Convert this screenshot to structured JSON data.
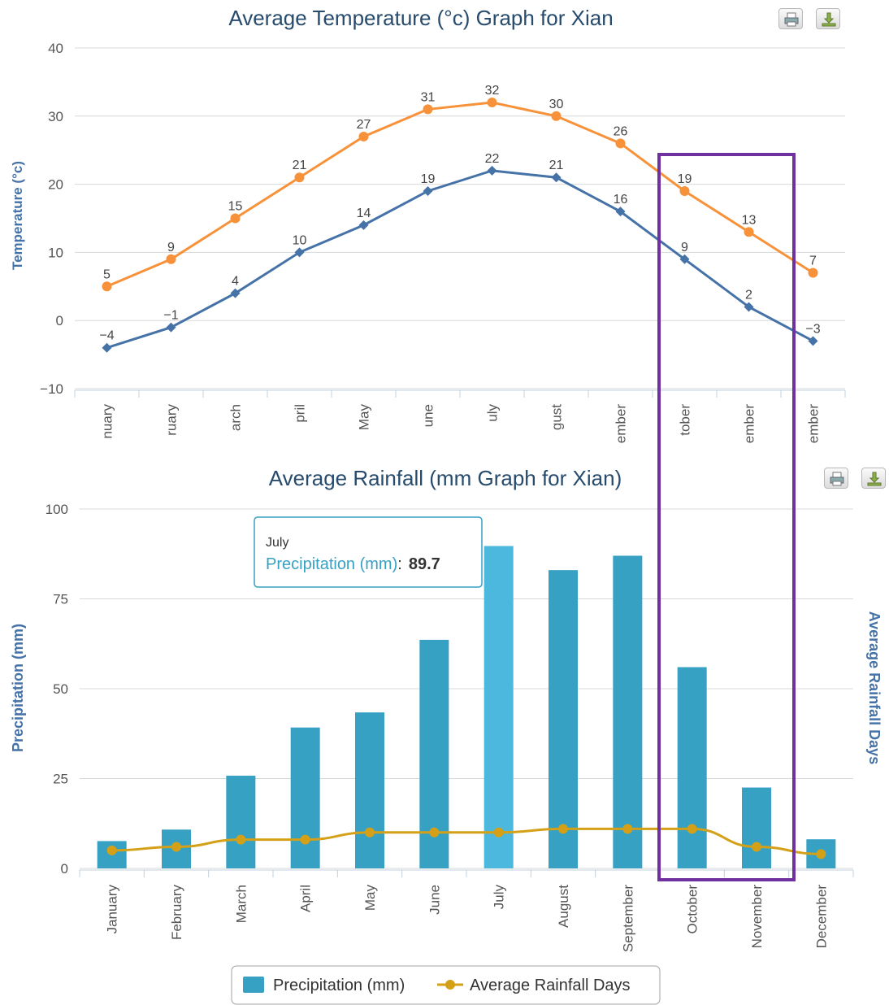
{
  "colors": {
    "temp_high": "#f7923a",
    "temp_low": "#4572a7",
    "bar": "#37a1c4",
    "bar_hover": "#4cb8de",
    "rain_days": "#d4a017",
    "title": "#274b6d",
    "axis_title": "#4572a7",
    "tooltip_label": "#37a1c4",
    "highlight_box": "#7030a0"
  },
  "icons": [
    "print-icon",
    "download-icon"
  ],
  "chart_data": [
    {
      "type": "line",
      "title": "Average Temperature (°c) Graph for Xian",
      "ylabel": "Temperature (°c)",
      "ylim": [
        -10,
        40
      ],
      "yticks": [
        "40",
        "30",
        "20",
        "10",
        "0",
        "−10"
      ],
      "grid": true,
      "categories": [
        "nuary",
        "ruary",
        "arch",
        "pril",
        "May",
        "une",
        "uly",
        "gust",
        "ember",
        "tober",
        "ember",
        "ember"
      ],
      "series": [
        {
          "key": "high",
          "values": [
            5,
            9,
            15,
            21,
            27,
            31,
            32,
            30,
            26,
            19,
            13,
            7
          ],
          "labels": [
            "5",
            "9",
            "15",
            "21",
            "27",
            "31",
            "32",
            "30",
            "26",
            "19",
            "13",
            "7"
          ]
        },
        {
          "key": "low",
          "values": [
            -4,
            -1,
            4,
            10,
            14,
            19,
            22,
            21,
            16,
            9,
            2,
            -3
          ],
          "labels": [
            "−4",
            "−1",
            "4",
            "10",
            "14",
            "19",
            "22",
            "21",
            "16",
            "9",
            "2",
            "−3"
          ]
        }
      ]
    },
    {
      "type": "bar",
      "title": "Average Rainfall (mm Graph for Xian)",
      "ylabel": "Precipitation (mm)",
      "y2label": "Average Rainfall Days",
      "ylim": [
        0,
        100
      ],
      "yticks": [
        "100",
        "75",
        "50",
        "25",
        "0"
      ],
      "grid": true,
      "categories": [
        "January",
        "February",
        "March",
        "April",
        "May",
        "June",
        "July",
        "August",
        "September",
        "October",
        "November",
        "December"
      ],
      "series": [
        {
          "name": "Precipitation (mm)",
          "type": "bar",
          "values": [
            7.6,
            10.8,
            25.8,
            39.2,
            43.4,
            63.6,
            89.7,
            83.0,
            87.0,
            56.0,
            22.5,
            8.1
          ]
        },
        {
          "name": "Average Rainfall Days",
          "type": "line",
          "values": [
            5,
            6,
            8,
            8,
            10,
            10,
            10,
            11,
            11,
            11,
            6,
            4
          ]
        }
      ],
      "legend": {
        "placement": "bottom-center",
        "items": [
          "Precipitation (mm)",
          "Average Rainfall Days"
        ]
      },
      "tooltip": {
        "month": "July",
        "label": "Precipitation (mm)",
        "sep": ":",
        "value": "89.7"
      }
    }
  ]
}
